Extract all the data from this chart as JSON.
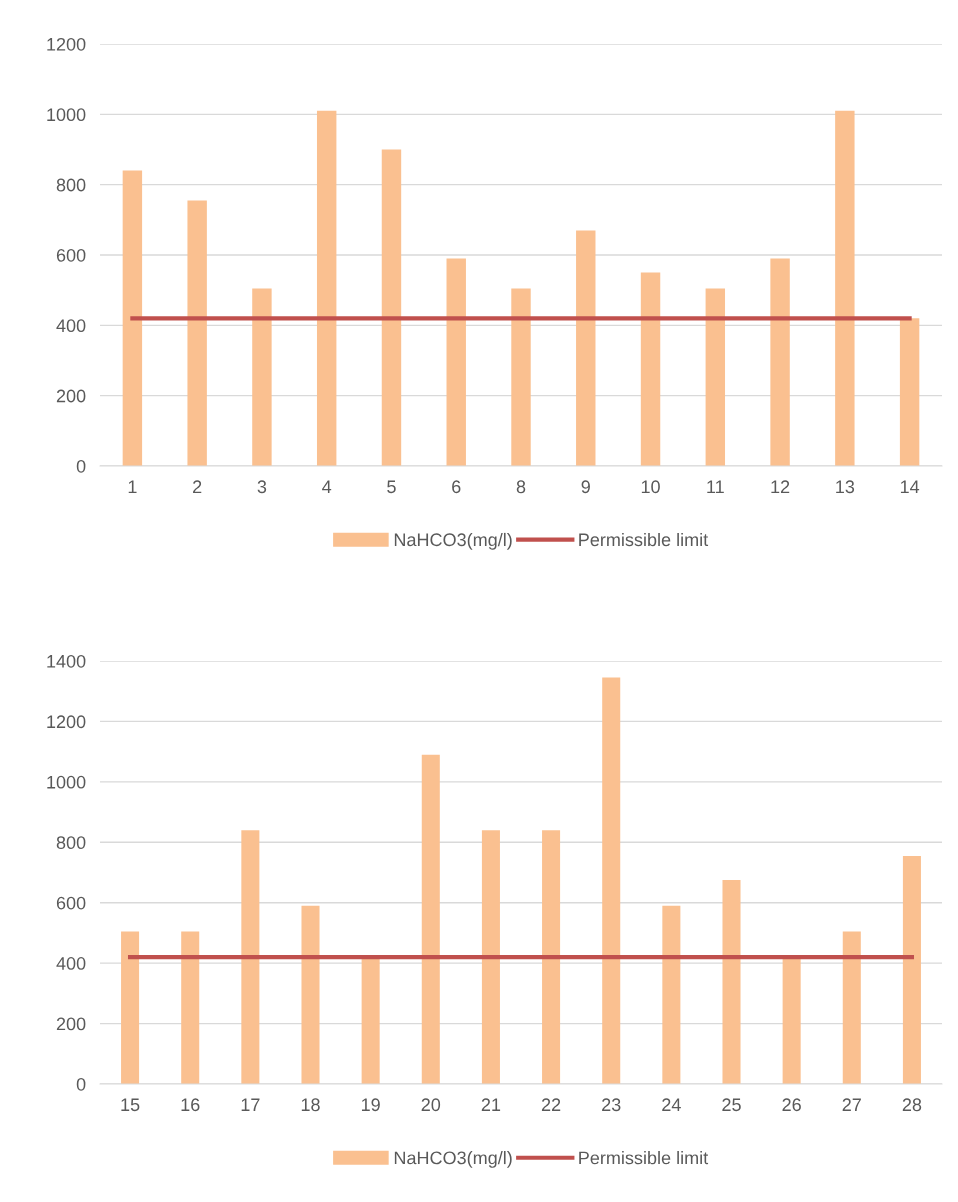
{
  "chart_data": [
    {
      "type": "bar",
      "categories": [
        "1",
        "2",
        "3",
        "4",
        "5",
        "6",
        "8",
        "9",
        "10",
        "11",
        "12",
        "13",
        "14"
      ],
      "ylim": [
        0,
        1200
      ],
      "yticks": [
        0,
        200,
        400,
        600,
        800,
        1000,
        1200
      ],
      "grid": "y",
      "legend": "bottom",
      "series": [
        {
          "name": "NaHCO3(mg/l)",
          "color": "#fac090",
          "values": [
            840,
            755,
            505,
            1010,
            900,
            590,
            505,
            670,
            550,
            505,
            590,
            1010,
            420
          ]
        },
        {
          "name": "Permissible limit",
          "type": "line",
          "color": "#c0504d",
          "values": [
            420,
            420,
            420,
            420,
            420,
            420,
            420,
            420,
            420,
            420,
            420,
            420,
            420
          ]
        }
      ]
    },
    {
      "type": "bar",
      "categories": [
        "15",
        "16",
        "17",
        "18",
        "19",
        "20",
        "21",
        "22",
        "23",
        "24",
        "25",
        "26",
        "27",
        "28"
      ],
      "ylim": [
        0,
        1400
      ],
      "yticks": [
        0,
        200,
        400,
        600,
        800,
        1000,
        1200,
        1400
      ],
      "grid": "y",
      "legend": "bottom",
      "series": [
        {
          "name": "NaHCO3(mg/l)",
          "color": "#fac090",
          "values": [
            505,
            505,
            840,
            590,
            420,
            1090,
            840,
            840,
            1345,
            590,
            675,
            420,
            505,
            755
          ]
        },
        {
          "name": "Permissible limit",
          "type": "line",
          "color": "#c0504d",
          "values": [
            420,
            420,
            420,
            420,
            420,
            420,
            420,
            420,
            420,
            420,
            420,
            420,
            420,
            420
          ]
        }
      ]
    }
  ]
}
